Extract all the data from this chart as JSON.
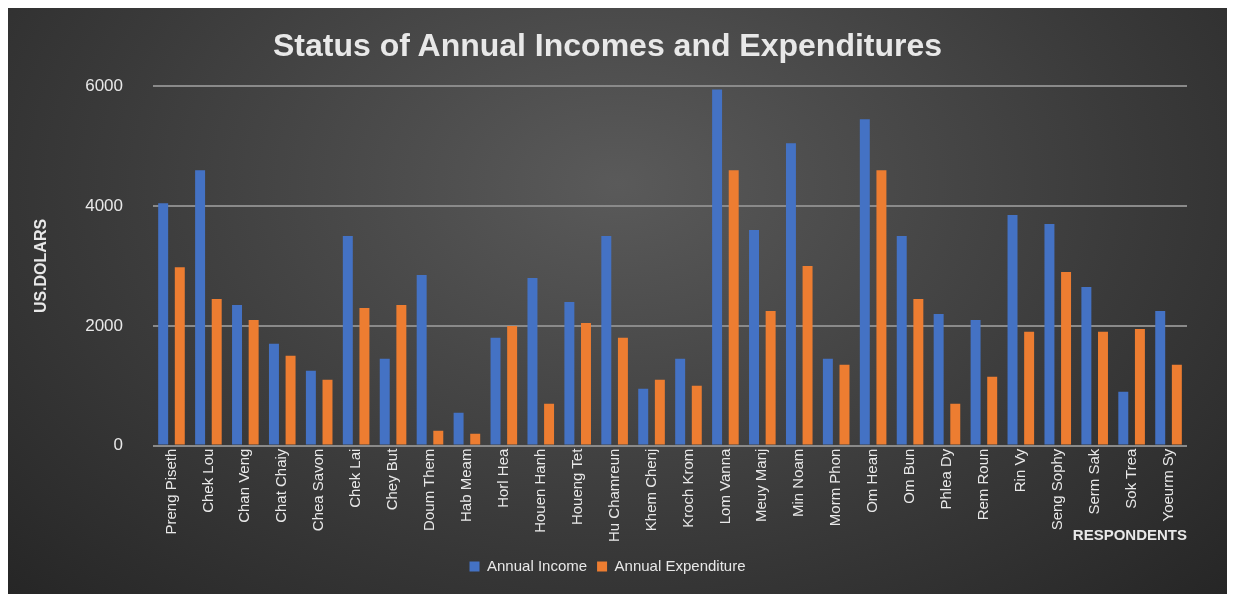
{
  "chart_data": {
    "type": "bar",
    "title": "Status of Annual Incomes and Expenditures",
    "xlabel": "RESPONDENTS",
    "ylabel": "US.DOLARS",
    "categories": [
      "Preng Piseth",
      "Chek Lou",
      "Chan Veng",
      "Chat Chaiy",
      "Chea Savon",
      "Chek Lai",
      "Chey But",
      "Doum Them",
      "Hab Meam",
      "Horl Hea",
      "Houen Hanh",
      "Houeng Tet",
      "Hu Chamreun",
      "Khem Chenj",
      "Kroch Krom",
      "Lom Vanna",
      "Meuy Manj",
      "Min Noam",
      "Morm Phon",
      "Om Hean",
      "Om Bun",
      "Phlea Dy",
      "Rem Roun",
      "Rin Vy",
      "Seng Sophy",
      "Serm Sak",
      "Sok Trea",
      "Yoeurm Sy"
    ],
    "series": [
      {
        "name": "Annual Income",
        "color": "#4472c4",
        "values": [
          4050,
          4600,
          2350,
          1700,
          1250,
          3500,
          1450,
          2850,
          550,
          1800,
          2800,
          2400,
          3500,
          950,
          1450,
          5950,
          3600,
          5050,
          1450,
          5450,
          3500,
          2200,
          2100,
          3850,
          3700,
          2650,
          900,
          2250
        ]
      },
      {
        "name": "Annual Expenditure",
        "color": "#ed7d31",
        "values": [
          2980,
          2450,
          2100,
          1500,
          1100,
          2300,
          2350,
          250,
          200,
          2000,
          700,
          2050,
          1800,
          1100,
          1000,
          4600,
          2250,
          3000,
          1350,
          4600,
          2450,
          700,
          1150,
          1900,
          2900,
          1900,
          1950,
          1350
        ]
      }
    ],
    "ylim": [
      0,
      6000
    ],
    "yticks": [
      0,
      2000,
      4000,
      6000
    ],
    "grid": "y",
    "legend": "bottom"
  }
}
